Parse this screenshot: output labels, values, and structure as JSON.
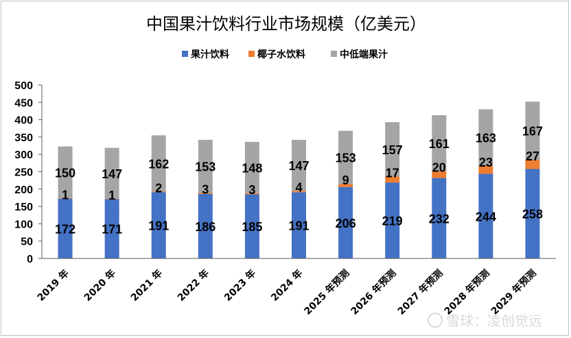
{
  "chart_data": {
    "type": "bar",
    "stacked": true,
    "title": "中国果汁饮料行业市场规模（亿美元）",
    "categories": [
      "2019 年",
      "2020 年",
      "2021 年",
      "2022 年",
      "2023 年",
      "2024 年",
      "2025 年预测",
      "2026 年预测",
      "2027 年预测",
      "2028 年预测",
      "2029 年预测"
    ],
    "series": [
      {
        "name": "果汁饮料",
        "color": "#4472c4",
        "values": [
          172,
          171,
          191,
          186,
          185,
          191,
          206,
          219,
          232,
          244,
          258
        ]
      },
      {
        "name": "椰子水饮料",
        "color": "#ed7d31",
        "values": [
          1,
          1,
          2,
          3,
          3,
          4,
          9,
          17,
          20,
          23,
          27
        ]
      },
      {
        "name": "中低端果汁",
        "color": "#a5a5a5",
        "values": [
          150,
          147,
          162,
          153,
          148,
          147,
          153,
          157,
          161,
          163,
          167
        ]
      }
    ],
    "ylim": [
      0,
      500
    ],
    "yticks": [
      0,
      50,
      100,
      150,
      200,
      250,
      300,
      350,
      400,
      450,
      500
    ],
    "legend_position": "top-center",
    "grid": false
  },
  "watermark": "雪球：凌创觉远"
}
